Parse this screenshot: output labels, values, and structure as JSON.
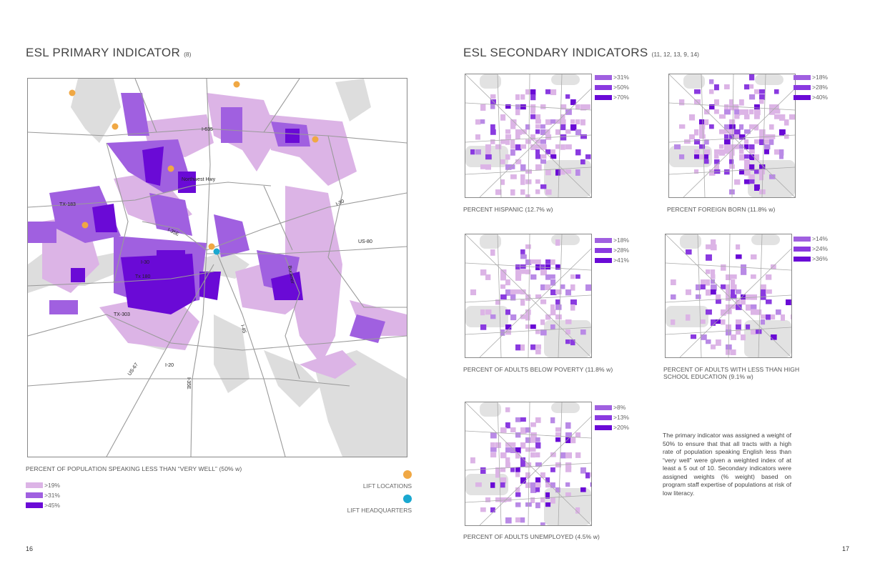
{
  "left": {
    "title": "ESL PRIMARY INDICATOR",
    "title_ref": "(8)",
    "caption": "PERCENT OF POPULATION SPEAKING LESS THAN “VERY WELL” (50% w)",
    "legend": [
      {
        "label": ">19%",
        "color": "#dcb4e6"
      },
      {
        "label": ">31%",
        "color": "#a060e0"
      },
      {
        "label": ">45%",
        "color": "#6a0ad6"
      }
    ],
    "lift_locations_label": "LIFT LOCATIONS",
    "lift_locations_color": "#f0a844",
    "lift_hq_label": "LIFT HEADQUARTERS",
    "lift_hq_color": "#1aa8d0",
    "road_labels": [
      "I-635",
      "Northwest Hwy",
      "TX-183",
      "I-35E",
      "I-30",
      "US-80",
      "Tx 180",
      "Buckner",
      "TX-303",
      "I-45",
      "US-67",
      "I-20",
      "I-35E"
    ],
    "page_number": "16"
  },
  "right": {
    "title": "ESL SECONDARY INDICATORS",
    "title_ref": "(11, 12, 13, 9, 14)",
    "maps": [
      {
        "caption": "PERCENT HISPANIC (12.7% w)",
        "legend": [
          ">31%",
          ">50%",
          ">70%"
        ]
      },
      {
        "caption": "PERCENT FOREIGN BORN (11.8% w)",
        "legend": [
          ">18%",
          ">28%",
          ">40%"
        ]
      },
      {
        "caption": "PERCENT OF ADULTS BELOW POVERTY (11.8% w)",
        "legend": [
          ">18%",
          ">28%",
          ">41%"
        ]
      },
      {
        "caption": "PERCENT OF ADULTS WITH LESS THAN HIGH",
        "caption2": "SCHOOL EDUCATION (9.1% w)",
        "legend": [
          ">14%",
          ">24%",
          ">36%"
        ]
      },
      {
        "caption": "PERCENT OF ADULTS  UNEMPLOYED (4.5% w)",
        "legend": [
          ">8%",
          ">13%",
          ">20%"
        ]
      }
    ],
    "legend_colors": [
      "#a060e0",
      "#8a3ae0",
      "#6a0ad6"
    ],
    "body": "The primary indicator was assigned a weight of 50% to ensure that that all tracts with a high rate of population speaking English less than “very well” were given a weighted index of at least a 5 out of 10. Secondary indicators were assigned weights (% weight) based on program staff expertise of populations at risk of low literacy.",
    "page_number": "17"
  }
}
